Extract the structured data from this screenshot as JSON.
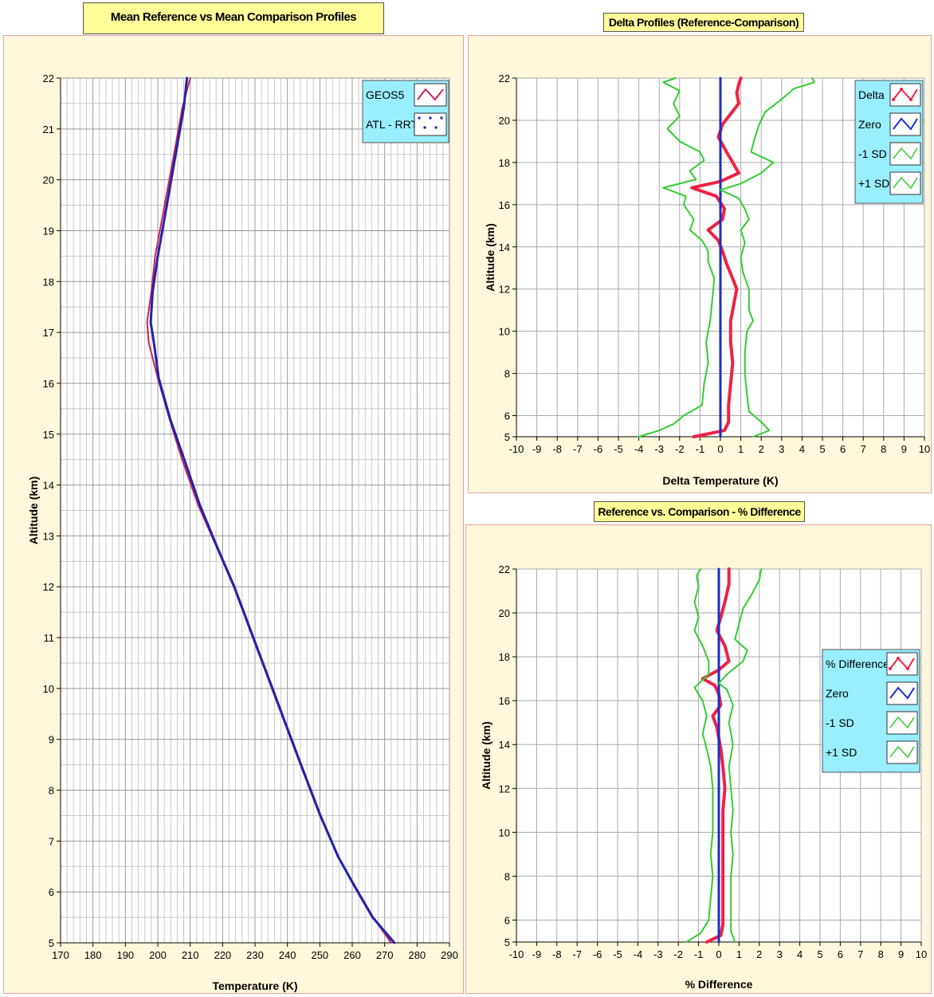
{
  "panels": {
    "mean": {
      "title": "Mean Reference vs Mean Comparison Profiles"
    },
    "delta": {
      "title": "Delta Profiles (Reference-Comparison)"
    },
    "pct": {
      "title": "Reference vs. Comparison - % Difference"
    }
  },
  "chart_data": [
    {
      "type": "line",
      "title": "Mean Reference vs Mean Comparison Profiles",
      "xlabel": "Temperature (K)",
      "ylabel": "Altitude (km)",
      "xlim": [
        170,
        290
      ],
      "ylim": [
        5,
        22
      ],
      "xticks": [
        170,
        180,
        190,
        200,
        210,
        220,
        230,
        240,
        250,
        260,
        270,
        280,
        290
      ],
      "yticks": [
        5,
        6,
        7,
        8,
        9,
        10,
        11,
        12,
        13,
        14,
        15,
        16,
        17,
        18,
        19,
        20,
        21,
        22
      ],
      "grid": true,
      "legend_position": "top-right",
      "series": [
        {
          "name": "GEOS5",
          "color": "#cc2255",
          "x": [
            272,
            266.5,
            261,
            255.6,
            250,
            244.6,
            239.3,
            234,
            228.7,
            223.4,
            218,
            212.5,
            207.5,
            203.6,
            200,
            197.2,
            196.7,
            198,
            199.2,
            201.8,
            205,
            207.5,
            210
          ],
          "y": [
            5,
            5.5,
            6.1,
            6.7,
            7.5,
            8.4,
            9.3,
            10.2,
            11.1,
            12.0,
            12.8,
            13.6,
            14.5,
            15.3,
            16.1,
            16.8,
            17.2,
            17.8,
            18.5,
            19.4,
            20.5,
            21.4,
            22.0
          ]
        },
        {
          "name": "ATL - RRT",
          "color": "#2222aa",
          "x": [
            273,
            266.3,
            260.8,
            255.6,
            250.2,
            244.8,
            239.5,
            234.2,
            228.9,
            223.6,
            218.2,
            213,
            208.2,
            203.8,
            200.3,
            198.8,
            197.8,
            198.4,
            200,
            202.5,
            205.5,
            208,
            209
          ],
          "y": [
            5,
            5.5,
            6.1,
            6.7,
            7.5,
            8.4,
            9.3,
            10.2,
            11.1,
            12.0,
            12.8,
            13.6,
            14.5,
            15.3,
            16.1,
            16.8,
            17.2,
            17.8,
            18.5,
            19.4,
            20.5,
            21.4,
            22.0
          ]
        }
      ]
    },
    {
      "type": "line",
      "title": "Delta Profiles (Reference-Comparison)",
      "xlabel": "Delta Temperature (K)",
      "ylabel": "Altitude (km)",
      "xlim": [
        -10,
        10
      ],
      "ylim": [
        5,
        22
      ],
      "xticks": [
        -10,
        -9,
        -8,
        -7,
        -6,
        -5,
        -4,
        -3,
        -2,
        -1,
        0,
        1,
        2,
        3,
        4,
        5,
        6,
        7,
        8,
        9,
        10
      ],
      "yticks": [
        5,
        6,
        8,
        10,
        12,
        14,
        16,
        18,
        20,
        22
      ],
      "grid": true,
      "legend_position": "top-right",
      "series": [
        {
          "name": "Delta",
          "color": "#ee2244",
          "x": [
            -1.3,
            0.2,
            0.4,
            0.4,
            0.5,
            0.6,
            0.5,
            0.5,
            0.6,
            0.7,
            0.8,
            0.6,
            0.3,
            0.1,
            -0.1,
            -0.6,
            0.1,
            0.2,
            -0.2,
            -1.4,
            0,
            0.9,
            0.6,
            0.3,
            -0.1,
            0.1,
            0.5,
            0.9,
            0.8,
            0.9,
            1.0
          ],
          "y": [
            5,
            5.3,
            5.7,
            6.5,
            7.5,
            8.5,
            9.5,
            10.5,
            11.0,
            11.5,
            12.0,
            12.5,
            13.2,
            13.8,
            14.3,
            14.8,
            15.3,
            15.8,
            16.4,
            16.8,
            17.1,
            17.5,
            18.0,
            18.5,
            19.2,
            19.8,
            20.3,
            20.8,
            21.3,
            21.7,
            22.0
          ]
        },
        {
          "name": "Zero",
          "color": "#1a2ecc",
          "x": [
            0,
            0
          ],
          "y": [
            5,
            22
          ]
        },
        {
          "name": "-1 SD",
          "color": "#33cc33",
          "x": [
            -4.0,
            -3,
            -2.3,
            -1.8,
            -0.9,
            -0.8,
            -0.6,
            -0.7,
            -0.5,
            -0.4,
            -0.3,
            -0.6,
            -0.6,
            -0.9,
            -1.5,
            -1.3,
            -1.8,
            -1.7,
            -2.8,
            -1.2,
            -1.5,
            -0.8,
            -1.0,
            -2,
            -2.6,
            -2.0,
            -2.3,
            -2.0,
            -2.8,
            -2.2
          ],
          "y": [
            5,
            5.3,
            5.6,
            6.0,
            6.5,
            7.5,
            8.5,
            9.5,
            10.5,
            11.5,
            12.5,
            13.3,
            13.8,
            14.3,
            14.8,
            15.3,
            16.0,
            16.4,
            16.8,
            17.2,
            17.6,
            18.1,
            18.5,
            19.0,
            19.6,
            20.2,
            20.8,
            21.4,
            21.8,
            22.0
          ]
        },
        {
          "name": "+1 SD",
          "color": "#33cc33",
          "x": [
            1.6,
            2.4,
            2.0,
            1.4,
            1.3,
            1.2,
            1.2,
            1.3,
            1.6,
            1.4,
            1.4,
            1.1,
            1.0,
            1.2,
            1.0,
            1.4,
            1.2,
            0.9,
            0,
            1.0,
            2.0,
            2.6,
            1.5,
            1.7,
            1.9,
            2.2,
            3.0,
            3.6,
            4.6,
            4.5
          ],
          "y": [
            5,
            5.3,
            5.7,
            6.2,
            7.0,
            8.0,
            9.0,
            10.0,
            10.5,
            11.0,
            12.0,
            12.8,
            13.5,
            14.2,
            14.8,
            15.3,
            15.8,
            16.3,
            16.7,
            17.0,
            17.5,
            18.0,
            18.5,
            19.2,
            19.8,
            20.4,
            21.0,
            21.5,
            21.8,
            22.0
          ]
        }
      ]
    },
    {
      "type": "line",
      "title": "Reference vs. Comparison - % Difference",
      "xlabel": "% Difference",
      "ylabel": "Altitude (km)",
      "xlim": [
        -10,
        10
      ],
      "ylim": [
        5,
        22
      ],
      "xticks": [
        -10,
        -9,
        -8,
        -7,
        -6,
        -5,
        -4,
        -3,
        -2,
        -1,
        0,
        1,
        2,
        3,
        4,
        5,
        6,
        7,
        8,
        9,
        10
      ],
      "yticks": [
        5,
        6,
        8,
        10,
        12,
        14,
        16,
        18,
        20,
        22
      ],
      "grid": true,
      "legend_position": "right",
      "series": [
        {
          "name": "% Difference",
          "color": "#ee2244",
          "x": [
            -0.6,
            0.1,
            0.2,
            0.2,
            0.2,
            0.2,
            0.2,
            0.2,
            0.3,
            0.2,
            0.1,
            0,
            -0.1,
            -0.3,
            0.1,
            0,
            -0.2,
            -0.8,
            0,
            0.5,
            0.3,
            -0.1,
            0.1,
            0.3,
            0.5,
            0.5
          ],
          "y": [
            5,
            5.3,
            5.8,
            6.8,
            8,
            9,
            10,
            11,
            12,
            13,
            13.8,
            14.3,
            14.8,
            15.3,
            15.8,
            16.3,
            16.7,
            17.0,
            17.4,
            17.8,
            18.5,
            19.2,
            19.8,
            20.5,
            21.3,
            22
          ]
        },
        {
          "name": "Zero",
          "color": "#1a2ecc",
          "x": [
            0,
            0
          ],
          "y": [
            5,
            22
          ]
        },
        {
          "name": "-1 SD",
          "color": "#33cc33",
          "x": [
            -1.6,
            -0.9,
            -0.5,
            -0.4,
            -0.3,
            -0.4,
            -0.3,
            -0.3,
            -0.3,
            -0.4,
            -0.6,
            -0.8,
            -0.6,
            -0.8,
            -1.2,
            -0.5,
            -0.5,
            -0.8,
            -1.2,
            -1.0,
            -1.2,
            -1.0,
            -1.1,
            -0.9
          ],
          "y": [
            5,
            5.4,
            6,
            7,
            8,
            9,
            10,
            11,
            12,
            13,
            13.8,
            14.5,
            15.3,
            16.0,
            16.6,
            17.2,
            17.8,
            18.5,
            19.2,
            19.8,
            20.5,
            21.2,
            21.7,
            22
          ]
        },
        {
          "name": "+1 SD",
          "color": "#33cc33",
          "x": [
            0.8,
            0.6,
            0.6,
            0.6,
            0.6,
            0.7,
            0.6,
            0.7,
            0.6,
            0.5,
            0.7,
            0.5,
            0.7,
            0.4,
            0,
            0.4,
            1.2,
            1.4,
            0.8,
            1.0,
            1.2,
            1.6,
            2.0,
            2.1
          ],
          "y": [
            5,
            5.5,
            6.2,
            7,
            8,
            9,
            10,
            11,
            12,
            13,
            14,
            15,
            15.8,
            16.5,
            16.8,
            17.2,
            17.8,
            18.3,
            18.8,
            19.5,
            20.2,
            20.8,
            21.5,
            22
          ]
        }
      ]
    }
  ]
}
